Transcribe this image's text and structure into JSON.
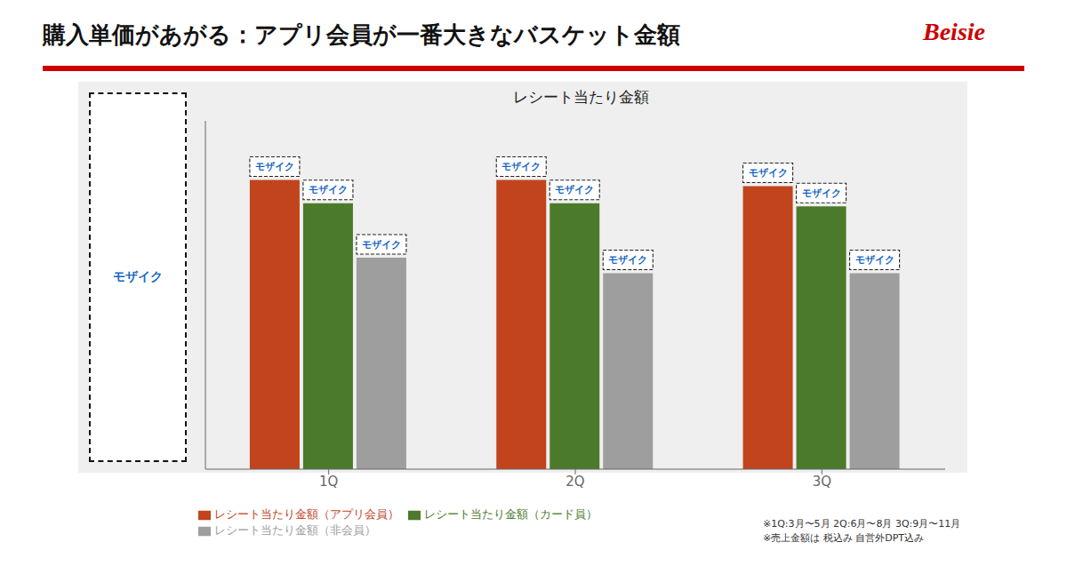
{
  "chart_data": {
    "type": "bar",
    "title": "購入単価があがる：アプリ会員が一番大きなバスケット金額",
    "subtitle": "レシート当たり金額",
    "categories": [
      "1Q",
      "2Q",
      "3Q"
    ],
    "series": [
      {
        "name": "レシート当たり金額（アプリ会員）",
        "color": "#c1441c",
        "values": [
          0.93,
          0.93,
          0.91
        ]
      },
      {
        "name": "レシート当たり金額（カード員）",
        "color": "#4b7a2b",
        "values": [
          0.855,
          0.855,
          0.845
        ]
      },
      {
        "name": "レシート当たり金額（非会員）",
        "color": "#9e9e9e",
        "values": [
          0.68,
          0.63,
          0.63
        ]
      }
    ],
    "ylim": [
      0,
      1.12
    ],
    "grid": false,
    "legend": "bottom",
    "tick_labels": "x",
    "annotations": [
      "Beisie",
      "モザイク",
      "※1Q:3月〜5月  2Q:6月〜8月  3Q:9月〜11月",
      "※売上金額は 税込み 自営外DPT込み"
    ]
  }
}
